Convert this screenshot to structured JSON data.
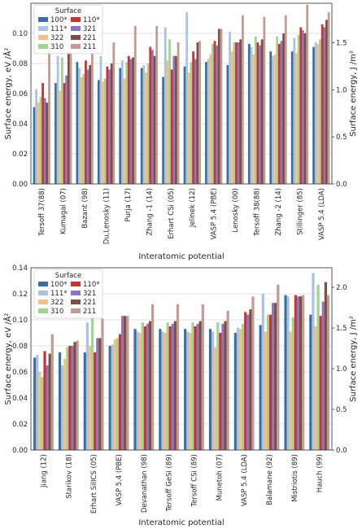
{
  "chart_data": [
    {
      "type": "bar",
      "xlabel": "Interatomic potential",
      "ylabel": "Surface energy, eV /Å²",
      "ylabel_right": "Surface energy, J /m²",
      "ylim": [
        0.0,
        0.12
      ],
      "yticks": [
        "0.00",
        "0.02",
        "0.04",
        "0.06",
        "0.08",
        "0.10"
      ],
      "right_ylim": [
        0.0,
        1.92
      ],
      "right_yticks": [
        "0.0",
        "0.5",
        "1.0",
        "1.5",
        "2.0"
      ],
      "grid": true,
      "legend": {
        "title": "Surface",
        "placement": "top-left",
        "columns": 2
      },
      "categories": [
        "Tersoff 37(88)",
        "Kumagai (07)",
        "Bazant (98)",
        "Du,Lenosky (11)",
        "Purja (17)",
        "Zhang -1 (14)",
        "Erhart CSi (05)",
        "Jelinek (12)",
        "VASP 5.4 (PBE)",
        "Lenosky (00)",
        "Tersoff 38(88)",
        "Zhang -2 (14)",
        "Stillinger (85)",
        "VASP 5.4 (LDA)"
      ],
      "series": [
        {
          "name": "100*",
          "color": "#3a6fa6",
          "values": [
            0.051,
            0.067,
            0.081,
            0.069,
            0.077,
            0.077,
            0.071,
            0.078,
            0.081,
            0.079,
            0.093,
            0.088,
            0.088,
            0.091
          ]
        },
        {
          "name": "111*",
          "color": "#a9c3e3",
          "values": [
            0.063,
            0.085,
            0.077,
            0.085,
            0.082,
            0.079,
            0.104,
            0.114,
            0.083,
            0.101,
            0.091,
            0.085,
            0.097,
            0.094
          ]
        },
        {
          "name": "322",
          "color": "#f2c08c",
          "values": [
            0.054,
            0.062,
            0.071,
            0.068,
            0.07,
            0.074,
            0.082,
            0.074,
            0.086,
            0.088,
            0.086,
            0.086,
            0.087,
            0.093
          ]
        },
        {
          "name": "310",
          "color": "#9ed58f",
          "values": [
            0.058,
            0.084,
            0.073,
            0.07,
            0.081,
            0.08,
            0.096,
            0.081,
            0.093,
            0.094,
            0.098,
            0.098,
            0.099,
            0.096
          ]
        },
        {
          "name": "110*",
          "color": "#c8352f",
          "values": [
            0.067,
            0.067,
            0.082,
            0.078,
            0.085,
            0.091,
            0.076,
            0.088,
            0.095,
            0.094,
            0.094,
            0.093,
            0.104,
            0.106
          ]
        },
        {
          "name": "321",
          "color": "#9273bd",
          "values": [
            0.057,
            0.072,
            0.076,
            0.076,
            0.083,
            0.089,
            0.085,
            0.083,
            0.092,
            0.094,
            0.092,
            0.095,
            0.102,
            0.104
          ]
        },
        {
          "name": "221",
          "color": "#7b4f45",
          "values": [
            0.054,
            0.087,
            0.079,
            0.08,
            0.084,
            0.085,
            0.085,
            0.094,
            0.103,
            0.096,
            0.096,
            0.1,
            0.1,
            0.109
          ]
        },
        {
          "name": "211",
          "color": "#c49b93",
          "values": [
            0.094,
            0.088,
            0.093,
            0.094,
            0.105,
            0.105,
            0.094,
            0.095,
            0.103,
            0.112,
            0.111,
            0.112,
            0.119,
            0.114
          ]
        }
      ]
    },
    {
      "type": "bar",
      "xlabel": "Interatomic potential",
      "ylabel": "Surface energy, eV /Å²",
      "ylabel_right": "Surface energy, J /m²",
      "ylim": [
        0.0,
        0.14
      ],
      "yticks": [
        "0.00",
        "0.02",
        "0.04",
        "0.06",
        "0.08",
        "0.10",
        "0.12",
        "0.14"
      ],
      "right_ylim": [
        0.0,
        2.24
      ],
      "right_yticks": [
        "0.0",
        "0.5",
        "1.0",
        "1.5",
        "2.0"
      ],
      "grid": true,
      "legend": {
        "title": "Surface",
        "placement": "top-left",
        "columns": 2
      },
      "categories": [
        "Jiang (12)",
        "Starikov (18)",
        "Erhart SiIICS (05)",
        "VASP 5.4 (PBE)",
        "Devanathan (98)",
        "Tersoff GeSi (89)",
        "Tersoff CSi (89)",
        "Munetoh (07)",
        "VASP 5.4 (LDA)",
        "Balamane (92)",
        "Mistriotis (89)",
        "Hauch (99)"
      ],
      "series": [
        {
          "name": "100*",
          "color": "#3a6fa6",
          "values": [
            0.071,
            0.075,
            0.075,
            0.08,
            0.093,
            0.093,
            0.093,
            0.093,
            0.09,
            0.096,
            0.119,
            0.104
          ]
        },
        {
          "name": "111*",
          "color": "#a9c3e3",
          "values": [
            0.073,
            0.065,
            0.098,
            0.081,
            0.091,
            0.091,
            0.091,
            0.091,
            0.094,
            0.12,
            0.118,
            0.136
          ]
        },
        {
          "name": "322",
          "color": "#f2c08c",
          "values": [
            0.06,
            0.07,
            0.08,
            0.085,
            0.09,
            0.09,
            0.09,
            0.079,
            0.093,
            0.091,
            0.091,
            0.095
          ]
        },
        {
          "name": "310",
          "color": "#9ed58f",
          "values": [
            0.056,
            0.079,
            0.103,
            0.086,
            0.098,
            0.098,
            0.098,
            0.098,
            0.097,
            0.104,
            0.102,
            0.127
          ]
        },
        {
          "name": "110*",
          "color": "#c8352f",
          "values": [
            0.076,
            0.08,
            0.075,
            0.089,
            0.095,
            0.095,
            0.095,
            0.09,
            0.106,
            0.104,
            0.119,
            0.103
          ]
        },
        {
          "name": "321",
          "color": "#9273bd",
          "values": [
            0.065,
            0.08,
            0.086,
            0.103,
            0.097,
            0.097,
            0.097,
            0.097,
            0.104,
            0.113,
            0.118,
            0.114
          ]
        },
        {
          "name": "221",
          "color": "#7b4f45",
          "values": [
            0.074,
            0.083,
            0.086,
            0.103,
            0.099,
            0.099,
            0.099,
            0.099,
            0.108,
            0.113,
            0.118,
            0.129
          ]
        },
        {
          "name": "211",
          "color": "#c49b93",
          "values": [
            0.089,
            0.084,
            0.101,
            0.103,
            0.112,
            0.112,
            0.112,
            0.107,
            0.118,
            0.127,
            0.119,
            0.119
          ]
        }
      ]
    }
  ]
}
